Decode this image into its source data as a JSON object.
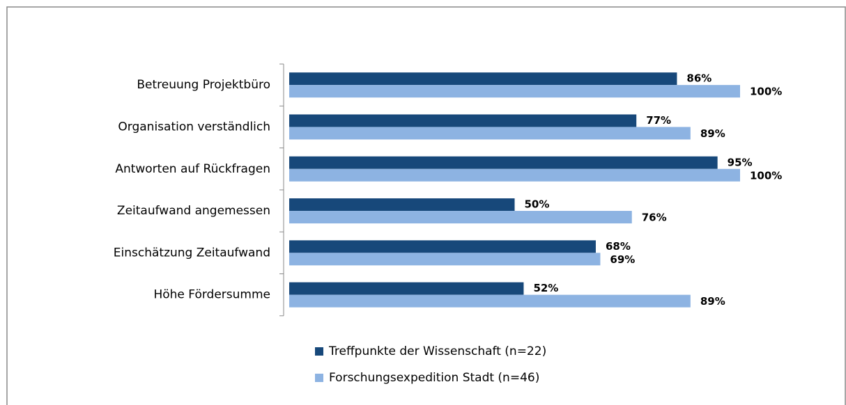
{
  "chart_data": {
    "type": "bar",
    "orientation": "horizontal",
    "categories": [
      "Betreuung Projektbüro",
      "Organisation verständlich",
      "Antworten auf Rückfragen",
      "Zeitaufwand angemessen",
      "Einschätzung Zeitaufwand",
      "Höhe Fördersumme"
    ],
    "series": [
      {
        "name": "Treffpunkte der Wissenschaft (n=22)",
        "color": "#17487a",
        "values": [
          86,
          77,
          95,
          50,
          68,
          52
        ],
        "value_labels": [
          "86%",
          "77%",
          "95%",
          "50%",
          "68%",
          "52%"
        ]
      },
      {
        "name": "Forschungsexpedition Stadt (n=46)",
        "color": "#8db3e2",
        "values": [
          100,
          89,
          100,
          76,
          69,
          89
        ],
        "value_labels": [
          "100%",
          "89%",
          "100%",
          "76%",
          "69%",
          "89%"
        ]
      }
    ],
    "legend": "bottom"
  }
}
